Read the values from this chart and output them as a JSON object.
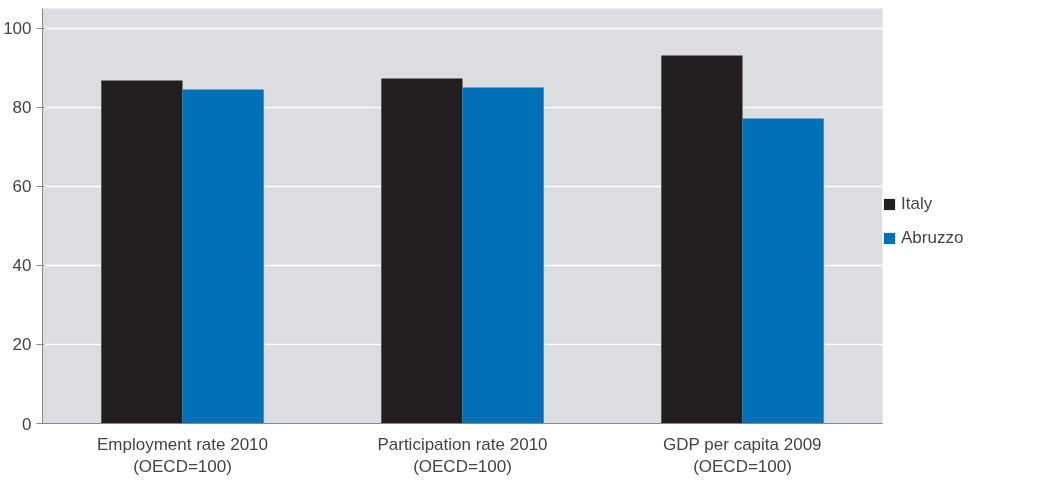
{
  "chart_data": {
    "type": "bar",
    "categories": [
      "Employment rate 2010\n(OECD=100)",
      "Participation rate 2010\n(OECD=100)",
      "GDP per capita 2009\n(OECD=100)"
    ],
    "series": [
      {
        "name": "Italy",
        "color": "#231f20",
        "values": [
          86.8,
          87.3,
          93.1
        ]
      },
      {
        "name": "Abruzzo",
        "color": "#0070b8",
        "values": [
          84.5,
          85.0,
          77.2
        ]
      }
    ],
    "ylim": [
      0,
      105
    ],
    "yticks": [
      0,
      20,
      40,
      60,
      80,
      100
    ],
    "grid": "y",
    "legend": "right"
  }
}
